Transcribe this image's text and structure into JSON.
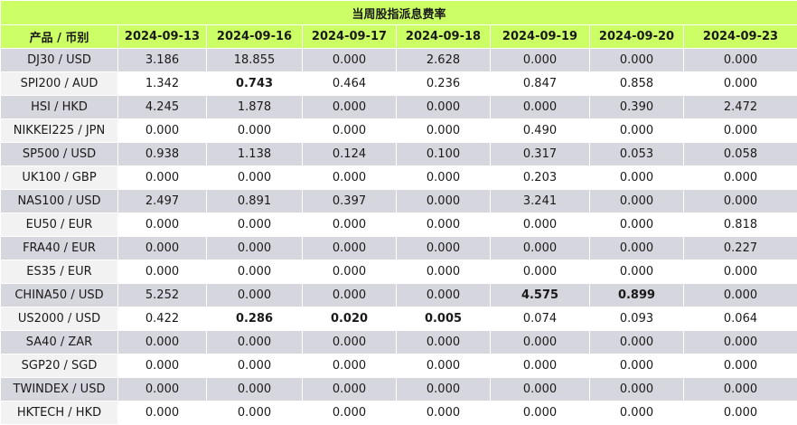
{
  "title": "当周股指派息费率",
  "columns": [
    "产品 / 币别",
    "2024-09-13",
    "2024-09-16",
    "2024-09-17",
    "2024-09-18",
    "2024-09-19",
    "2024-09-20",
    "2024-09-23"
  ],
  "rows": [
    {
      "product": "DJ30 / USD",
      "values": [
        "3.186",
        "18.855",
        "0.000",
        "2.628",
        "0.000",
        "0.000",
        "0.000"
      ],
      "bold": []
    },
    {
      "product": "SPI200 / AUD",
      "values": [
        "1.342",
        "0.743",
        "0.464",
        "0.236",
        "0.847",
        "0.858",
        "0.000"
      ],
      "bold": [
        1
      ]
    },
    {
      "product": "HSI / HKD",
      "values": [
        "4.245",
        "1.878",
        "0.000",
        "0.000",
        "0.000",
        "0.390",
        "2.472"
      ],
      "bold": []
    },
    {
      "product": "NIKKEI225 / JPN",
      "values": [
        "0.000",
        "0.000",
        "0.000",
        "0.000",
        "0.490",
        "0.000",
        "0.000"
      ],
      "bold": []
    },
    {
      "product": "SP500 / USD",
      "values": [
        "0.938",
        "1.138",
        "0.124",
        "0.100",
        "0.317",
        "0.053",
        "0.058"
      ],
      "bold": []
    },
    {
      "product": "UK100 / GBP",
      "values": [
        "0.000",
        "0.000",
        "0.000",
        "0.000",
        "0.203",
        "0.000",
        "0.000"
      ],
      "bold": []
    },
    {
      "product": "NAS100 / USD",
      "values": [
        "2.497",
        "0.891",
        "0.397",
        "0.000",
        "3.241",
        "0.000",
        "0.000"
      ],
      "bold": []
    },
    {
      "product": "EU50 / EUR",
      "values": [
        "0.000",
        "0.000",
        "0.000",
        "0.000",
        "0.000",
        "0.000",
        "0.818"
      ],
      "bold": []
    },
    {
      "product": "FRA40 / EUR",
      "values": [
        "0.000",
        "0.000",
        "0.000",
        "0.000",
        "0.000",
        "0.000",
        "0.227"
      ],
      "bold": []
    },
    {
      "product": "ES35 / EUR",
      "values": [
        "0.000",
        "0.000",
        "0.000",
        "0.000",
        "0.000",
        "0.000",
        "0.000"
      ],
      "bold": []
    },
    {
      "product": "CHINA50 / USD",
      "values": [
        "5.252",
        "0.000",
        "0.000",
        "0.000",
        "4.575",
        "0.899",
        "0.000"
      ],
      "bold": [
        4,
        5
      ]
    },
    {
      "product": "US2000 / USD",
      "values": [
        "0.422",
        "0.286",
        "0.020",
        "0.005",
        "0.074",
        "0.093",
        "0.064"
      ],
      "bold": [
        1,
        2,
        3
      ]
    },
    {
      "product": "SA40 / ZAR",
      "values": [
        "0.000",
        "0.000",
        "0.000",
        "0.000",
        "0.000",
        "0.000",
        "0.000"
      ],
      "bold": []
    },
    {
      "product": "SGP20 / SGD",
      "values": [
        "0.000",
        "0.000",
        "0.000",
        "0.000",
        "0.000",
        "0.000",
        "0.000"
      ],
      "bold": []
    },
    {
      "product": "TWINDEX / USD",
      "values": [
        "0.000",
        "0.000",
        "0.000",
        "0.000",
        "0.000",
        "0.000",
        "0.000"
      ],
      "bold": []
    },
    {
      "product": "HKTECH / HKD",
      "values": [
        "0.000",
        "0.000",
        "0.000",
        "0.000",
        "0.000",
        "0.000",
        "0.000"
      ],
      "bold": []
    }
  ],
  "colors": {
    "header_bg": "#ccff66",
    "odd_row_bg": "#d6d6de",
    "even_row_bg": "#ffffff",
    "border": "#ffffff"
  }
}
